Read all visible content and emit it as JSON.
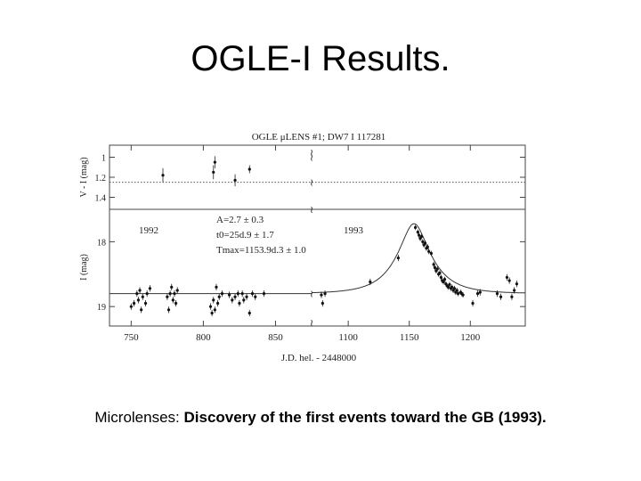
{
  "slide": {
    "title": "OGLE-I Results.",
    "caption_prefix": "Microlenses: ",
    "caption_bold": "Discovery of the first events toward the GB (1993)."
  },
  "chart_data": {
    "type": "scatter",
    "title": "OGLE μLENS #1; DW7 I 117281",
    "xlabel": "J.D. hel. - 2448000",
    "panels": [
      {
        "name": "color",
        "ylabel": "V - I (mag)",
        "ylim": [
          1.52,
          0.88
        ],
        "yticks": [
          1,
          1.2,
          1.4
        ],
        "reference": 1.25
      },
      {
        "name": "magnitude",
        "ylabel": "I (mag)",
        "ylim": [
          19.3,
          17.5
        ],
        "yticks": [
          18,
          19
        ],
        "baseline": 18.8
      }
    ],
    "x_segments": [
      {
        "range": [
          735,
          875
        ],
        "ticks": [
          750,
          800,
          850
        ]
      },
      {
        "range": [
          1070,
          1245
        ],
        "ticks": [
          1100,
          1150,
          1200
        ]
      }
    ],
    "year_labels": [
      {
        "text": "1992",
        "segment": 0
      },
      {
        "text": "1993",
        "segment": 1
      }
    ],
    "fit_text": {
      "line1": "A=2.7 ± 0.3",
      "line2": "t0=25d.9 ± 1.7",
      "line3": "Tmax=1153.9d.3 ± 1.0"
    },
    "fit_curve": {
      "t_max": 1153.9,
      "t0": 25.9,
      "amplification": 2.7,
      "baseline": 18.8
    },
    "color_points": [
      {
        "x": 772,
        "y": 1.18,
        "err": 0.07
      },
      {
        "x": 807,
        "y": 1.15,
        "err": 0.07
      },
      {
        "x": 808,
        "y": 1.05,
        "err": 0.06
      },
      {
        "x": 822,
        "y": 1.23,
        "err": 0.06
      },
      {
        "x": 832,
        "y": 1.12,
        "err": 0.04
      }
    ],
    "mag_points": [
      {
        "x": 750,
        "y": 19.0,
        "err": 0.05
      },
      {
        "x": 752,
        "y": 18.95,
        "err": 0.05
      },
      {
        "x": 754,
        "y": 18.8,
        "err": 0.05
      },
      {
        "x": 755,
        "y": 18.9,
        "err": 0.05
      },
      {
        "x": 756,
        "y": 18.75,
        "err": 0.05
      },
      {
        "x": 757,
        "y": 19.05,
        "err": 0.05
      },
      {
        "x": 758,
        "y": 18.85,
        "err": 0.05
      },
      {
        "x": 760,
        "y": 18.95,
        "err": 0.05
      },
      {
        "x": 761,
        "y": 18.8,
        "err": 0.05
      },
      {
        "x": 763,
        "y": 18.72,
        "err": 0.05
      },
      {
        "x": 775,
        "y": 18.85,
        "err": 0.05
      },
      {
        "x": 776,
        "y": 19.05,
        "err": 0.05
      },
      {
        "x": 777,
        "y": 18.8,
        "err": 0.05
      },
      {
        "x": 778,
        "y": 18.7,
        "err": 0.05
      },
      {
        "x": 779,
        "y": 18.9,
        "err": 0.05
      },
      {
        "x": 780,
        "y": 18.8,
        "err": 0.05
      },
      {
        "x": 781,
        "y": 18.95,
        "err": 0.05
      },
      {
        "x": 782,
        "y": 18.75,
        "err": 0.05
      },
      {
        "x": 805,
        "y": 19.0,
        "err": 0.05
      },
      {
        "x": 806,
        "y": 19.1,
        "err": 0.05
      },
      {
        "x": 807,
        "y": 18.9,
        "err": 0.05
      },
      {
        "x": 808,
        "y": 19.05,
        "err": 0.05
      },
      {
        "x": 809,
        "y": 18.7,
        "err": 0.05
      },
      {
        "x": 810,
        "y": 18.95,
        "err": 0.05
      },
      {
        "x": 811,
        "y": 18.85,
        "err": 0.05
      },
      {
        "x": 813,
        "y": 18.8,
        "err": 0.05
      },
      {
        "x": 818,
        "y": 18.82,
        "err": 0.05
      },
      {
        "x": 820,
        "y": 18.9,
        "err": 0.05
      },
      {
        "x": 822,
        "y": 18.85,
        "err": 0.05
      },
      {
        "x": 824,
        "y": 18.8,
        "err": 0.05
      },
      {
        "x": 825,
        "y": 18.95,
        "err": 0.05
      },
      {
        "x": 827,
        "y": 18.8,
        "err": 0.05
      },
      {
        "x": 828,
        "y": 18.9,
        "err": 0.05
      },
      {
        "x": 830,
        "y": 18.85,
        "err": 0.05
      },
      {
        "x": 832,
        "y": 19.1,
        "err": 0.05
      },
      {
        "x": 834,
        "y": 18.8,
        "err": 0.05
      },
      {
        "x": 836,
        "y": 18.85,
        "err": 0.05
      },
      {
        "x": 842,
        "y": 18.8,
        "err": 0.05
      },
      {
        "x": 1078,
        "y": 18.82,
        "err": 0.05
      },
      {
        "x": 1079,
        "y": 18.95,
        "err": 0.05
      },
      {
        "x": 1081,
        "y": 18.8,
        "err": 0.05
      },
      {
        "x": 1118,
        "y": 18.62,
        "err": 0.05
      },
      {
        "x": 1141,
        "y": 18.25,
        "err": 0.05
      },
      {
        "x": 1155,
        "y": 17.78,
        "err": 0.04
      },
      {
        "x": 1157,
        "y": 17.85,
        "err": 0.04
      },
      {
        "x": 1158,
        "y": 17.9,
        "err": 0.04
      },
      {
        "x": 1159,
        "y": 17.95,
        "err": 0.04
      },
      {
        "x": 1160,
        "y": 17.92,
        "err": 0.04
      },
      {
        "x": 1161,
        "y": 18.0,
        "err": 0.04
      },
      {
        "x": 1162,
        "y": 18.05,
        "err": 0.04
      },
      {
        "x": 1163,
        "y": 18.02,
        "err": 0.04
      },
      {
        "x": 1164,
        "y": 18.1,
        "err": 0.04
      },
      {
        "x": 1165,
        "y": 18.08,
        "err": 0.04
      },
      {
        "x": 1166,
        "y": 18.15,
        "err": 0.04
      },
      {
        "x": 1168,
        "y": 18.18,
        "err": 0.04
      },
      {
        "x": 1170,
        "y": 18.35,
        "err": 0.04
      },
      {
        "x": 1171,
        "y": 18.4,
        "err": 0.04
      },
      {
        "x": 1172,
        "y": 18.45,
        "err": 0.04
      },
      {
        "x": 1173,
        "y": 18.42,
        "err": 0.04
      },
      {
        "x": 1174,
        "y": 18.5,
        "err": 0.04
      },
      {
        "x": 1175,
        "y": 18.48,
        "err": 0.04
      },
      {
        "x": 1176,
        "y": 18.55,
        "err": 0.04
      },
      {
        "x": 1177,
        "y": 18.6,
        "err": 0.04
      },
      {
        "x": 1178,
        "y": 18.62,
        "err": 0.04
      },
      {
        "x": 1179,
        "y": 18.58,
        "err": 0.04
      },
      {
        "x": 1180,
        "y": 18.65,
        "err": 0.04
      },
      {
        "x": 1181,
        "y": 18.68,
        "err": 0.04
      },
      {
        "x": 1182,
        "y": 18.7,
        "err": 0.04
      },
      {
        "x": 1183,
        "y": 18.66,
        "err": 0.04
      },
      {
        "x": 1184,
        "y": 18.72,
        "err": 0.04
      },
      {
        "x": 1185,
        "y": 18.7,
        "err": 0.04
      },
      {
        "x": 1186,
        "y": 18.75,
        "err": 0.04
      },
      {
        "x": 1187,
        "y": 18.72,
        "err": 0.04
      },
      {
        "x": 1188,
        "y": 18.78,
        "err": 0.04
      },
      {
        "x": 1189,
        "y": 18.75,
        "err": 0.04
      },
      {
        "x": 1190,
        "y": 18.8,
        "err": 0.04
      },
      {
        "x": 1192,
        "y": 18.78,
        "err": 0.04
      },
      {
        "x": 1193,
        "y": 18.8,
        "err": 0.04
      },
      {
        "x": 1194,
        "y": 18.82,
        "err": 0.04
      },
      {
        "x": 1202,
        "y": 18.95,
        "err": 0.05
      },
      {
        "x": 1206,
        "y": 18.8,
        "err": 0.05
      },
      {
        "x": 1208,
        "y": 18.78,
        "err": 0.05
      },
      {
        "x": 1222,
        "y": 18.8,
        "err": 0.05
      },
      {
        "x": 1225,
        "y": 18.85,
        "err": 0.05
      },
      {
        "x": 1230,
        "y": 18.55,
        "err": 0.05
      },
      {
        "x": 1232,
        "y": 18.6,
        "err": 0.05
      },
      {
        "x": 1234,
        "y": 18.85,
        "err": 0.05
      },
      {
        "x": 1236,
        "y": 18.75,
        "err": 0.05
      },
      {
        "x": 1238,
        "y": 18.65,
        "err": 0.05
      }
    ]
  }
}
